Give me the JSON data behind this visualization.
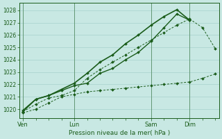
{
  "bg_color": "#c8e8e3",
  "grid_color": "#b0d8d3",
  "line_color": "#1a5c1a",
  "xlabel": "Pression niveau de la mer( hPa )",
  "xtick_labels": [
    "Ven",
    "Lun",
    "Sam",
    "Dim"
  ],
  "xtick_positions": [
    0,
    4,
    10,
    13
  ],
  "yticks": [
    1020,
    1021,
    1022,
    1023,
    1024,
    1025,
    1026,
    1027,
    1028
  ],
  "ylim": [
    1019.3,
    1028.6
  ],
  "xlim": [
    -0.3,
    15.3
  ],
  "figsize": [
    3.2,
    2.0
  ],
  "dpi": 100,
  "series_A_x": [
    0,
    1,
    2,
    3,
    4,
    5,
    6,
    7,
    8,
    9,
    10,
    11,
    12,
    13,
    14,
    15
  ],
  "series_A": [
    1019.7,
    1020.0,
    1020.5,
    1021.0,
    1021.2,
    1021.4,
    1021.5,
    1021.6,
    1021.7,
    1021.8,
    1021.9,
    1022.0,
    1022.1,
    1022.2,
    1022.5,
    1022.85
  ],
  "series_B_x": [
    0,
    1,
    2,
    3,
    4,
    5,
    6,
    7,
    8,
    9,
    10,
    11,
    12,
    13,
    14,
    15
  ],
  "series_B": [
    1019.8,
    1020.4,
    1020.9,
    1021.1,
    1021.5,
    1022.5,
    1023.2,
    1023.8,
    1024.4,
    1025.0,
    1025.6,
    1026.2,
    1026.8,
    1027.3,
    1026.6,
    1024.9
  ],
  "series_C_x": [
    0,
    1,
    2,
    3,
    4,
    5,
    6,
    7,
    8,
    9,
    10,
    11,
    12,
    13
  ],
  "series_C": [
    1019.8,
    1020.8,
    1021.1,
    1021.5,
    1021.9,
    1022.1,
    1022.9,
    1023.3,
    1024.0,
    1024.6,
    1025.5,
    1026.6,
    1027.7,
    1027.2
  ],
  "series_D_x": [
    0,
    1,
    2,
    3,
    4,
    5,
    6,
    7,
    8,
    9,
    10,
    11,
    12,
    13
  ],
  "series_D": [
    1019.9,
    1020.8,
    1021.1,
    1021.6,
    1022.1,
    1022.9,
    1023.8,
    1024.4,
    1025.3,
    1026.0,
    1026.8,
    1027.5,
    1028.05,
    1027.2
  ]
}
